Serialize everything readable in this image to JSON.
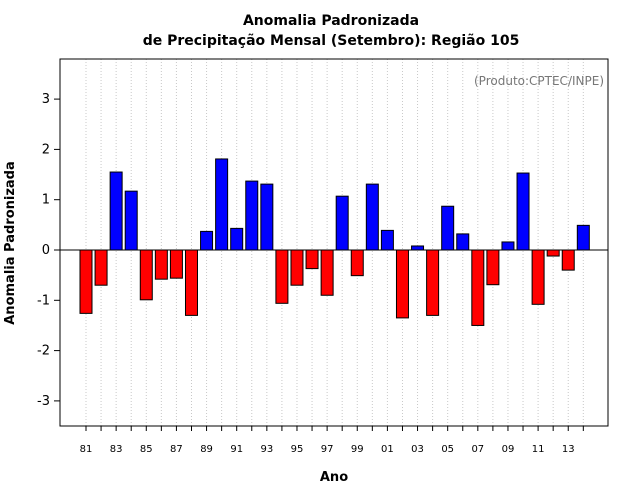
{
  "chart_data": {
    "type": "bar",
    "title": "Anomalia Padronizada",
    "subtitle": "de Precipitação Mensal (Setembro): Região 105",
    "xlabel": "Ano",
    "ylabel": "Anomalia Padronizada",
    "annotation": "(Produto:CPTEC/INPE)",
    "ylim": [
      -3.5,
      3.8
    ],
    "yticks": [
      -3,
      -2,
      -1,
      0,
      1,
      2,
      3
    ],
    "x_tick_labels": [
      "81",
      "83",
      "85",
      "87",
      "89",
      "91",
      "93",
      "95",
      "97",
      "99",
      "01",
      "03",
      "05",
      "07",
      "09",
      "11",
      "13"
    ],
    "categories": [
      "1981",
      "1982",
      "1983",
      "1984",
      "1985",
      "1986",
      "1987",
      "1988",
      "1989",
      "1990",
      "1991",
      "1992",
      "1993",
      "1994",
      "1995",
      "1996",
      "1997",
      "1998",
      "1999",
      "2000",
      "2001",
      "2002",
      "2003",
      "2004",
      "2005",
      "2006",
      "2007",
      "2008",
      "2009",
      "2010",
      "2011",
      "2012",
      "2013",
      "2014"
    ],
    "values": [
      -1.26,
      -0.7,
      1.55,
      1.17,
      -0.99,
      -0.58,
      -0.56,
      -1.3,
      0.37,
      1.81,
      0.43,
      1.37,
      1.31,
      -1.06,
      -0.7,
      -0.37,
      -0.9,
      1.07,
      -0.51,
      1.31,
      0.39,
      -1.35,
      0.08,
      -1.3,
      0.87,
      0.32,
      -1.5,
      -0.69,
      0.16,
      1.53,
      -1.08,
      -0.12,
      -0.4,
      0.49
    ],
    "positive_color": "#0000ff",
    "negative_color": "#ff0000",
    "grid": true
  }
}
